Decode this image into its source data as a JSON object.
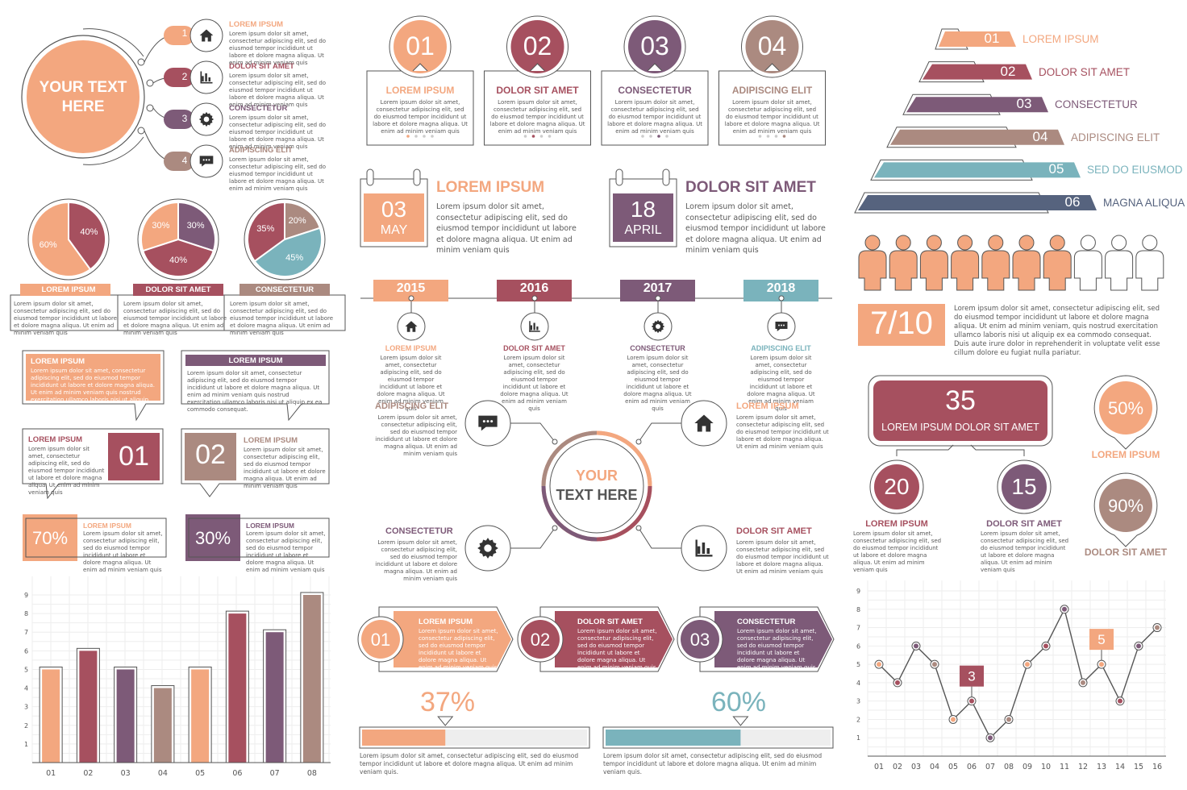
{
  "colors": {
    "peach": "#F3A77F",
    "red": "#A6505F",
    "purple": "#7D5A78",
    "taupe": "#AB8A80",
    "teal": "#7AB3BC",
    "slate": "#56637E",
    "outline": "#555555"
  },
  "lorem_short": "Lorem ipsum dolor sit amet, consectetur adipiscing elit, sed do eiusmod tempor incididunt ut labore et dolore magna aliqua. Ut enim ad minim veniam quis",
  "lorem_mini": "Lorem ipsum dolor sit amet, consectetur adipiscing elit, sed do eiusmod tempor incididunt ut labore et dolore magna aliqua. Ut enim ad minim veniam quis",
  "lorem_long": "Lorem ipsum dolor sit amet, consectetur adipiscing elit, sed do eiusmod tempor incididunt ut labore et dolore magna aliqua. Ut enim ad minim veniam quis nostrud exercitation ullamco laboris nisi ut aliquip ex ea commodo consequat.",
  "lorem_very_long": "Lorem ipsum dolor sit amet, consectetur adipiscing elit, sed do eiusmod tempor incididunt ut labore et dolore magna aliqua. Ut enim ad minim veniam, quis nostrud exercitation ullamco laboris nisi ut aliquip ex ea commodo consequat. Duis aute irure dolor in reprehenderit in voluptate velit esse cillum dolore eu fugiat nulla pariatur.",
  "lorem_bar": "Lorem ipsum dolor sit amet, consectetur adipiscing elit, sed do eiusmod tempor incididunt ut labore et dolore magna aliqua. Ut enim ad minim veniam quis.",
  "circle_list": {
    "center_text": "YOUR TEXT HERE",
    "items": [
      {
        "num": "1",
        "title": "LOREM IPSUM",
        "icon": "home-icon"
      },
      {
        "num": "2",
        "title": "DOLOR SIT AMET",
        "icon": "bar-chart-icon"
      },
      {
        "num": "3",
        "title": "CONSECTETUR",
        "icon": "gear-icon"
      },
      {
        "num": "4",
        "title": "ADIPISCING ELIT",
        "icon": "chat-icon"
      }
    ]
  },
  "cards": [
    {
      "num": "01",
      "title": "LOREM IPSUM"
    },
    {
      "num": "02",
      "title": "DOLOR SIT AMET"
    },
    {
      "num": "03",
      "title": "CONSECTETUR"
    },
    {
      "num": "04",
      "title": "ADIPISCING ELIT"
    }
  ],
  "pyramid": [
    {
      "num": "01",
      "label": "LOREM IPSUM"
    },
    {
      "num": "02",
      "label": "DOLOR SIT AMET"
    },
    {
      "num": "03",
      "label": "CONSECTETUR"
    },
    {
      "num": "04",
      "label": "ADIPISCING ELIT"
    },
    {
      "num": "05",
      "label": "SED DO EIUSMOD"
    },
    {
      "num": "06",
      "label": "MAGNA ALIQUA"
    }
  ],
  "pies": [
    {
      "label": "LOREM IPSUM",
      "slices": [
        {
          "value": 60,
          "text": "60%"
        },
        {
          "value": 40,
          "text": "40%"
        }
      ]
    },
    {
      "label": "DOLOR SIT AMET",
      "slices": [
        {
          "value": 30,
          "text": "30%"
        },
        {
          "value": 30,
          "text": "30%"
        },
        {
          "value": 40,
          "text": "40%"
        }
      ]
    },
    {
      "label": "CONSECTETUR",
      "slices": [
        {
          "value": 35,
          "text": "35%"
        },
        {
          "value": 20,
          "text": "20%"
        },
        {
          "value": 45,
          "text": "45%"
        }
      ]
    }
  ],
  "calendars": [
    {
      "day": "03",
      "month": "MAY",
      "title": "LOREM IPSUM"
    },
    {
      "day": "18",
      "month": "APRIL",
      "title": "DOLOR SIT AMET"
    }
  ],
  "timeline": [
    {
      "year": "2015",
      "title": "LOREM IPSUM",
      "icon": "home-icon"
    },
    {
      "year": "2016",
      "title": "DOLOR SIT AMET",
      "icon": "bar-chart-icon"
    },
    {
      "year": "2017",
      "title": "CONSECTETUR",
      "icon": "gear-icon"
    },
    {
      "year": "2018",
      "title": "ADIPISCING ELIT",
      "icon": "chat-icon"
    }
  ],
  "people": {
    "filled": 7,
    "total": 10,
    "ratio": "7/10"
  },
  "callouts": {
    "top_title": "LOREM IPSUM",
    "top_title2": "LOREM IPSUM",
    "box1": {
      "title": "LOREM IPSUM",
      "num": "01"
    },
    "box2": {
      "title": "LOREM IPSUM",
      "num": "02"
    }
  },
  "percent_boxes": [
    {
      "value": "70%",
      "title": "LOREM IPSUM"
    },
    {
      "value": "30%",
      "title": "LOREM IPSUM"
    }
  ],
  "hub": {
    "center": "YOUR TEXT HERE",
    "items": [
      {
        "title": "ADIPISCING ELIT",
        "icon": "chat-icon"
      },
      {
        "title": "LOREM IPSUM",
        "icon": "home-icon"
      },
      {
        "title": "CONSECTETUR",
        "icon": "gear-icon"
      },
      {
        "title": "DOLOR SIT AMET",
        "icon": "bar-chart-icon"
      }
    ]
  },
  "org": {
    "top_value": "35",
    "top_label": "LOREM IPSUM DOLOR SIT AMET",
    "left": {
      "value": "20",
      "label": "LOREM IPSUM"
    },
    "right": {
      "value": "15",
      "label": "DOLOR SIT AMET"
    }
  },
  "pins": [
    {
      "value": "50%",
      "label": "LOREM IPSUM"
    },
    {
      "value": "90%",
      "label": "DOLOR SIT AMET"
    }
  ],
  "arrows": [
    {
      "num": "01",
      "title": "LOREM IPSUM"
    },
    {
      "num": "02",
      "title": "DOLOR SIT AMET"
    },
    {
      "num": "03",
      "title": "CONSECTETUR"
    }
  ],
  "progress": [
    {
      "label": "37%",
      "value": 0.37
    },
    {
      "label": "60%",
      "value": 0.6
    }
  ],
  "chart_data": [
    {
      "type": "bar",
      "categories": [
        "01",
        "02",
        "03",
        "04",
        "05",
        "06",
        "07",
        "08"
      ],
      "values": [
        5,
        6,
        5,
        4,
        5,
        8,
        7,
        9
      ],
      "ylim": [
        0,
        9
      ],
      "yticks": [
        "1",
        "2",
        "3",
        "4",
        "5",
        "6",
        "7",
        "8",
        "9"
      ],
      "grid": true
    },
    {
      "type": "line",
      "categories": [
        "01",
        "02",
        "03",
        "04",
        "05",
        "06",
        "07",
        "08",
        "09",
        "10",
        "11",
        "12",
        "13",
        "14",
        "15",
        "16"
      ],
      "values": [
        5,
        4,
        6,
        5,
        2,
        3,
        1,
        2,
        5,
        6,
        8,
        4,
        5,
        3,
        6,
        7
      ],
      "ylim": [
        0,
        9
      ],
      "yticks": [
        "1",
        "2",
        "3",
        "4",
        "5",
        "6",
        "7",
        "8",
        "9"
      ],
      "grid": true,
      "annotations": [
        {
          "x": "06",
          "text": "3"
        },
        {
          "x": "13",
          "text": "5"
        }
      ]
    }
  ]
}
